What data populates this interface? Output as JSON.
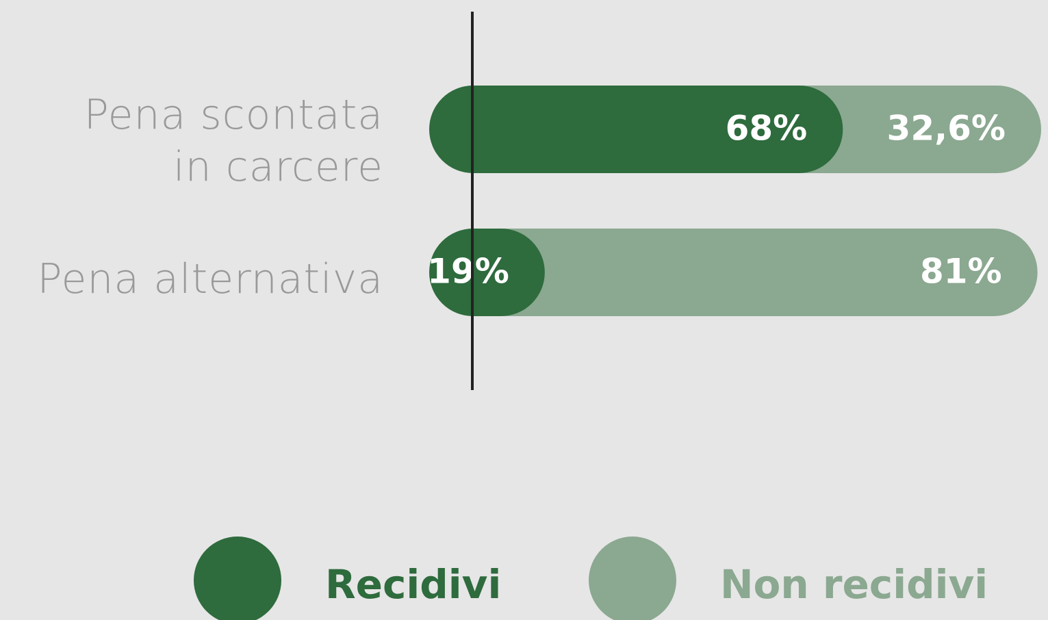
{
  "chart_data": {
    "type": "stacked-bar-horizontal",
    "categories": [
      "Pena scontata\nin carcere",
      "Pena alternativa"
    ],
    "series": [
      {
        "name": "Recidivi",
        "color": "#2e6b3d",
        "values": [
          68,
          19
        ],
        "value_labels": [
          "68%",
          "19%"
        ]
      },
      {
        "name": "Non recidivi",
        "color": "#8ba890",
        "values": [
          32.6,
          81
        ],
        "value_labels": [
          "32,6%",
          "81%"
        ]
      }
    ]
  }
}
